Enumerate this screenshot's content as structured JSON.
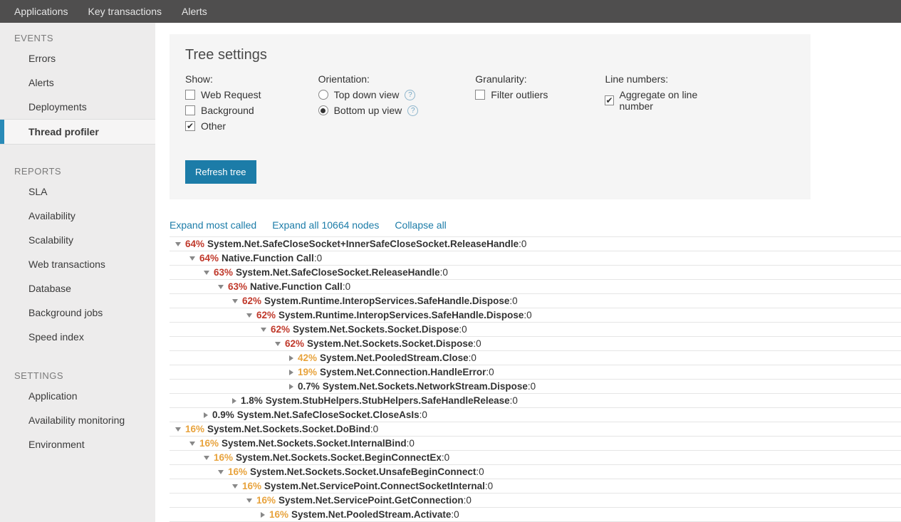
{
  "topbar": {
    "items": [
      {
        "label": "Applications"
      },
      {
        "label": "Key transactions"
      },
      {
        "label": "Alerts"
      }
    ]
  },
  "sidebar": {
    "sections": [
      {
        "title": "EVENTS",
        "items": [
          {
            "label": "Errors",
            "active": false
          },
          {
            "label": "Alerts",
            "active": false
          },
          {
            "label": "Deployments",
            "active": false
          },
          {
            "label": "Thread profiler",
            "active": true
          }
        ]
      },
      {
        "title": "REPORTS",
        "items": [
          {
            "label": "SLA"
          },
          {
            "label": "Availability"
          },
          {
            "label": "Scalability"
          },
          {
            "label": "Web transactions"
          },
          {
            "label": "Database"
          },
          {
            "label": "Background jobs"
          },
          {
            "label": "Speed index"
          }
        ]
      },
      {
        "title": "SETTINGS",
        "items": [
          {
            "label": "Application"
          },
          {
            "label": "Availability monitoring"
          },
          {
            "label": "Environment"
          }
        ]
      }
    ]
  },
  "settings": {
    "title": "Tree settings",
    "show": {
      "label": "Show:",
      "options": [
        {
          "label": "Web Request",
          "checked": false
        },
        {
          "label": "Background",
          "checked": false
        },
        {
          "label": "Other",
          "checked": true
        }
      ]
    },
    "orientation": {
      "label": "Orientation:",
      "options": [
        {
          "label": "Top down view",
          "checked": false,
          "help": true
        },
        {
          "label": "Bottom up view",
          "checked": true,
          "help": true
        }
      ]
    },
    "granularity": {
      "label": "Granularity:",
      "options": [
        {
          "label": "Filter outliers",
          "checked": false
        }
      ]
    },
    "linenumbers": {
      "label": "Line numbers:",
      "options": [
        {
          "label": "Aggregate on line number",
          "checked": true
        }
      ]
    },
    "refresh_label": "Refresh tree"
  },
  "tree_actions": {
    "expand_most": "Expand most called",
    "expand_all": "Expand all 10664 nodes",
    "collapse_all": "Collapse all"
  },
  "tree": {
    "rows": [
      {
        "indent": 0,
        "caret": "down",
        "pct": "64%",
        "pct_color": "red",
        "name": "System.Net.SafeCloseSocket+InnerSafeCloseSocket.ReleaseHandle",
        "suffix": " :0"
      },
      {
        "indent": 1,
        "caret": "down",
        "pct": "64%",
        "pct_color": "red",
        "name": "Native.Function Call",
        "suffix": " :0"
      },
      {
        "indent": 2,
        "caret": "down",
        "pct": "63%",
        "pct_color": "red",
        "name": "System.Net.SafeCloseSocket.ReleaseHandle",
        "suffix": " :0"
      },
      {
        "indent": 3,
        "caret": "down",
        "pct": "63%",
        "pct_color": "red",
        "name": "Native.Function Call",
        "suffix": " :0"
      },
      {
        "indent": 4,
        "caret": "down",
        "pct": "62%",
        "pct_color": "red",
        "name": "System.Runtime.InteropServices.SafeHandle.Dispose",
        "suffix": " :0"
      },
      {
        "indent": 5,
        "caret": "down",
        "pct": "62%",
        "pct_color": "red",
        "name": "System.Runtime.InteropServices.SafeHandle.Dispose",
        "suffix": " :0"
      },
      {
        "indent": 6,
        "caret": "down",
        "pct": "62%",
        "pct_color": "red",
        "name": "System.Net.Sockets.Socket.Dispose",
        "suffix": " :0"
      },
      {
        "indent": 7,
        "caret": "down",
        "pct": "62%",
        "pct_color": "red",
        "name": "System.Net.Sockets.Socket.Dispose",
        "suffix": " :0"
      },
      {
        "indent": 8,
        "caret": "right",
        "pct": "42%",
        "pct_color": "orange",
        "name": "System.Net.PooledStream.Close",
        "suffix": " :0"
      },
      {
        "indent": 8,
        "caret": "right",
        "pct": "19%",
        "pct_color": "orange",
        "name": "System.Net.Connection.HandleError",
        "suffix": " :0"
      },
      {
        "indent": 8,
        "caret": "right",
        "pct": "0.7%",
        "pct_color": "dark",
        "name": "System.Net.Sockets.NetworkStream.Dispose",
        "suffix": " :0"
      },
      {
        "indent": 4,
        "caret": "right",
        "pct": "1.8%",
        "pct_color": "dark",
        "name": "System.StubHelpers.StubHelpers.SafeHandleRelease",
        "suffix": " :0"
      },
      {
        "indent": 2,
        "caret": "right",
        "pct": "0.9%",
        "pct_color": "dark",
        "name": "System.Net.SafeCloseSocket.CloseAsIs",
        "suffix": " :0"
      },
      {
        "indent": 0,
        "caret": "down",
        "pct": "16%",
        "pct_color": "orange",
        "name": "System.Net.Sockets.Socket.DoBind",
        "suffix": " :0"
      },
      {
        "indent": 1,
        "caret": "down",
        "pct": "16%",
        "pct_color": "orange",
        "name": "System.Net.Sockets.Socket.InternalBind",
        "suffix": " :0"
      },
      {
        "indent": 2,
        "caret": "down",
        "pct": "16%",
        "pct_color": "orange",
        "name": "System.Net.Sockets.Socket.BeginConnectEx",
        "suffix": " :0"
      },
      {
        "indent": 3,
        "caret": "down",
        "pct": "16%",
        "pct_color": "orange",
        "name": "System.Net.Sockets.Socket.UnsafeBeginConnect",
        "suffix": " :0"
      },
      {
        "indent": 4,
        "caret": "down",
        "pct": "16%",
        "pct_color": "orange",
        "name": "System.Net.ServicePoint.ConnectSocketInternal",
        "suffix": " :0"
      },
      {
        "indent": 5,
        "caret": "down",
        "pct": "16%",
        "pct_color": "orange",
        "name": "System.Net.ServicePoint.GetConnection",
        "suffix": " :0"
      },
      {
        "indent": 6,
        "caret": "right",
        "pct": "16%",
        "pct_color": "orange",
        "name": "System.Net.PooledStream.Activate",
        "suffix": " :0"
      }
    ]
  },
  "colors": {
    "topbar_bg": "#4f4e4e",
    "sidebar_bg": "#edecec",
    "accent": "#1c7ca8",
    "pct_red": "#c0392b",
    "pct_orange": "#e8a33d",
    "border": "#e5e5e5"
  }
}
